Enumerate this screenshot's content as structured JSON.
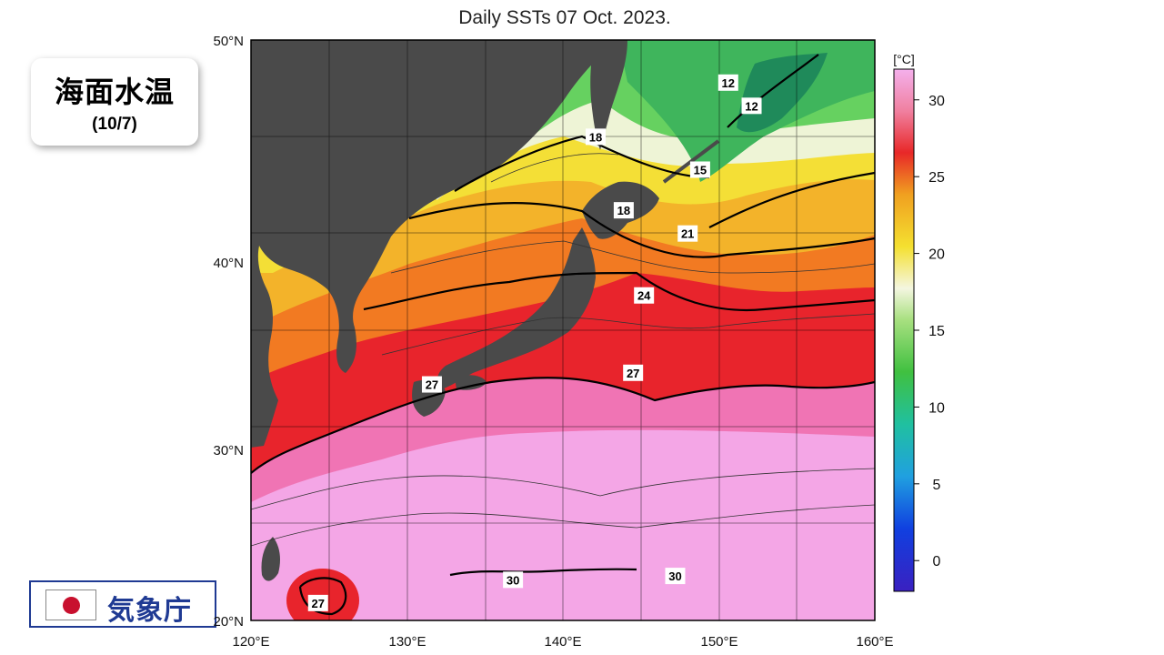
{
  "title": "Daily SSTs 07 Oct. 2023.",
  "badge": {
    "main": "海面水温",
    "date": "(10/7)"
  },
  "agency": {
    "name": "気象庁"
  },
  "axes": {
    "lat_labels": [
      "50°N",
      "40°N",
      "30°N",
      "20°N"
    ],
    "lat_values": [
      50,
      40,
      30,
      20
    ],
    "lon_labels": [
      "120°E",
      "130°E",
      "140°E",
      "150°E",
      "160°E"
    ],
    "lon_values": [
      120,
      130,
      140,
      150,
      160
    ],
    "lon_range": [
      120,
      160
    ],
    "lat_range": [
      20,
      50
    ]
  },
  "colorbar": {
    "unit": "[°C]",
    "ticks": [
      30,
      25,
      20,
      15,
      10,
      5,
      0
    ],
    "range": [
      -2,
      32
    ]
  },
  "contour_labels": [
    {
      "text": "12",
      "lon": 150.6,
      "lat": 47.8
    },
    {
      "text": "12",
      "lon": 152.1,
      "lat": 46.6
    },
    {
      "text": "18",
      "lon": 142.1,
      "lat": 45.0
    },
    {
      "text": "15",
      "lon": 148.8,
      "lat": 43.3
    },
    {
      "text": "18",
      "lon": 143.9,
      "lat": 41.2
    },
    {
      "text": "21",
      "lon": 148.0,
      "lat": 40.0
    },
    {
      "text": "24",
      "lon": 145.2,
      "lat": 36.8
    },
    {
      "text": "27",
      "lon": 131.6,
      "lat": 32.2
    },
    {
      "text": "27",
      "lon": 144.5,
      "lat": 32.8
    },
    {
      "text": "30",
      "lon": 136.8,
      "lat": 22.1
    },
    {
      "text": "30",
      "lon": 147.2,
      "lat": 22.3
    },
    {
      "text": "27",
      "lon": 124.3,
      "lat": 20.9
    }
  ],
  "colors": {
    "land": "#4a4a4a",
    "pink": "#f4a6e6",
    "red": "#e8242c",
    "orange": "#f0a020",
    "yellow": "#f4e03a",
    "pale": "#e8f4d0",
    "green": "#5ed45a",
    "darkgreen": "#1f8a5a"
  }
}
